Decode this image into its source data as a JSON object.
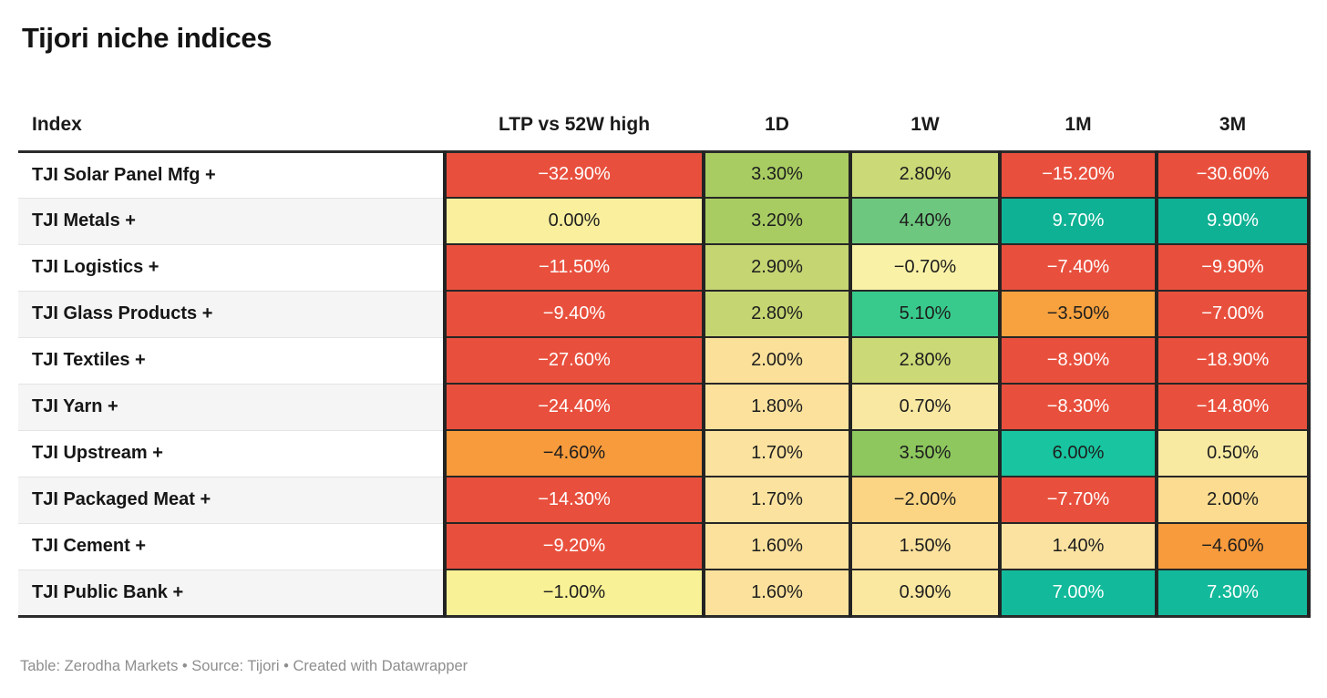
{
  "title": "Tijori niche indices",
  "footer": "Table: Zerodha Markets • Source: Tijori • Created with Datawrapper",
  "table": {
    "columns": [
      "Index",
      "LTP vs 52W high",
      "1D",
      "1W",
      "1M",
      "3M"
    ],
    "rows": [
      {
        "label": "TJI Solar Panel Mfg +",
        "cells": [
          {
            "v": "−32.90%",
            "bg": "#e8503d",
            "fg": "#ffffff"
          },
          {
            "v": "3.30%",
            "bg": "#a8cc62",
            "fg": "#1d1d1d"
          },
          {
            "v": "2.80%",
            "bg": "#ccd977",
            "fg": "#1d1d1d"
          },
          {
            "v": "−15.20%",
            "bg": "#e8503d",
            "fg": "#ffffff"
          },
          {
            "v": "−30.60%",
            "bg": "#e8503d",
            "fg": "#ffffff"
          }
        ]
      },
      {
        "label": "TJI Metals +",
        "cells": [
          {
            "v": "0.00%",
            "bg": "#f9ef9d",
            "fg": "#1d1d1d"
          },
          {
            "v": "3.20%",
            "bg": "#a8cc62",
            "fg": "#1d1d1d"
          },
          {
            "v": "4.40%",
            "bg": "#6ec77f",
            "fg": "#1d1d1d"
          },
          {
            "v": "9.70%",
            "bg": "#0fb194",
            "fg": "#ffffff"
          },
          {
            "v": "9.90%",
            "bg": "#0fb194",
            "fg": "#ffffff"
          }
        ]
      },
      {
        "label": "TJI Logistics +",
        "cells": [
          {
            "v": "−11.50%",
            "bg": "#e8503d",
            "fg": "#ffffff"
          },
          {
            "v": "2.90%",
            "bg": "#c4d572",
            "fg": "#1d1d1d"
          },
          {
            "v": "−0.70%",
            "bg": "#f9f2a6",
            "fg": "#1d1d1d"
          },
          {
            "v": "−7.40%",
            "bg": "#e8503d",
            "fg": "#ffffff"
          },
          {
            "v": "−9.90%",
            "bg": "#e8503d",
            "fg": "#ffffff"
          }
        ]
      },
      {
        "label": "TJI Glass Products +",
        "cells": [
          {
            "v": "−9.40%",
            "bg": "#e8503d",
            "fg": "#ffffff"
          },
          {
            "v": "2.80%",
            "bg": "#c4d572",
            "fg": "#1d1d1d"
          },
          {
            "v": "5.10%",
            "bg": "#38ca8c",
            "fg": "#1d1d1d"
          },
          {
            "v": "−3.50%",
            "bg": "#f7a23f",
            "fg": "#1d1d1d"
          },
          {
            "v": "−7.00%",
            "bg": "#e8503d",
            "fg": "#ffffff"
          }
        ]
      },
      {
        "label": "TJI Textiles +",
        "cells": [
          {
            "v": "−27.60%",
            "bg": "#e8503d",
            "fg": "#ffffff"
          },
          {
            "v": "2.00%",
            "bg": "#fbe099",
            "fg": "#1d1d1d"
          },
          {
            "v": "2.80%",
            "bg": "#ccd977",
            "fg": "#1d1d1d"
          },
          {
            "v": "−8.90%",
            "bg": "#e8503d",
            "fg": "#ffffff"
          },
          {
            "v": "−18.90%",
            "bg": "#e8503d",
            "fg": "#ffffff"
          }
        ]
      },
      {
        "label": "TJI Yarn +",
        "cells": [
          {
            "v": "−24.40%",
            "bg": "#e8503d",
            "fg": "#ffffff"
          },
          {
            "v": "1.80%",
            "bg": "#fbe19c",
            "fg": "#1d1d1d"
          },
          {
            "v": "0.70%",
            "bg": "#f9e8a2",
            "fg": "#1d1d1d"
          },
          {
            "v": "−8.30%",
            "bg": "#e8503d",
            "fg": "#ffffff"
          },
          {
            "v": "−14.80%",
            "bg": "#e8503d",
            "fg": "#ffffff"
          }
        ]
      },
      {
        "label": "TJI Upstream +",
        "cells": [
          {
            "v": "−4.60%",
            "bg": "#f89b3c",
            "fg": "#1d1d1d"
          },
          {
            "v": "1.70%",
            "bg": "#fbe29e",
            "fg": "#1d1d1d"
          },
          {
            "v": "3.50%",
            "bg": "#8dc75e",
            "fg": "#1d1d1d"
          },
          {
            "v": "6.00%",
            "bg": "#18c5a0",
            "fg": "#1d1d1d"
          },
          {
            "v": "0.50%",
            "bg": "#f9eaa2",
            "fg": "#1d1d1d"
          }
        ]
      },
      {
        "label": "TJI Packaged Meat +",
        "cells": [
          {
            "v": "−14.30%",
            "bg": "#e8503d",
            "fg": "#ffffff"
          },
          {
            "v": "1.70%",
            "bg": "#fbe29e",
            "fg": "#1d1d1d"
          },
          {
            "v": "−2.00%",
            "bg": "#fbd583",
            "fg": "#1d1d1d"
          },
          {
            "v": "−7.70%",
            "bg": "#e8503d",
            "fg": "#ffffff"
          },
          {
            "v": "2.00%",
            "bg": "#fbdc90",
            "fg": "#1d1d1d"
          }
        ]
      },
      {
        "label": "TJI Cement +",
        "cells": [
          {
            "v": "−9.20%",
            "bg": "#e8503d",
            "fg": "#ffffff"
          },
          {
            "v": "1.60%",
            "bg": "#fbe19c",
            "fg": "#1d1d1d"
          },
          {
            "v": "1.50%",
            "bg": "#fbe19c",
            "fg": "#1d1d1d"
          },
          {
            "v": "1.40%",
            "bg": "#fbe2a0",
            "fg": "#1d1d1d"
          },
          {
            "v": "−4.60%",
            "bg": "#f89b3c",
            "fg": "#1d1d1d"
          }
        ]
      },
      {
        "label": "TJI Public Bank +",
        "cells": [
          {
            "v": "−1.00%",
            "bg": "#f8f195",
            "fg": "#1d1d1d"
          },
          {
            "v": "1.60%",
            "bg": "#fbe19c",
            "fg": "#1d1d1d"
          },
          {
            "v": "0.90%",
            "bg": "#fae7a0",
            "fg": "#1d1d1d"
          },
          {
            "v": "7.00%",
            "bg": "#12ba9b",
            "fg": "#ffffff"
          },
          {
            "v": "7.30%",
            "bg": "#12ba9b",
            "fg": "#ffffff"
          }
        ]
      }
    ]
  },
  "colors": {
    "negative_strong": "#e8503d",
    "negative_mild": "#f89b3c",
    "neutral": "#f9ef9d",
    "positive_mild": "#a8cc62",
    "positive_strong": "#0fb194",
    "header_rule": "#2b2b2b",
    "footer_text": "#8e8e8e"
  },
  "chart_data": {
    "type": "table",
    "title": "Tijori niche indices",
    "columns": [
      "Index",
      "LTP vs 52W high",
      "1D",
      "1W",
      "1M",
      "3M"
    ],
    "units": "%",
    "color_coding": "diverging red-yellow-green heatmap by cell value",
    "rows": [
      [
        "TJI Solar Panel Mfg +",
        -32.9,
        3.3,
        2.8,
        -15.2,
        -30.6
      ],
      [
        "TJI Metals +",
        0.0,
        3.2,
        4.4,
        9.7,
        9.9
      ],
      [
        "TJI Logistics +",
        -11.5,
        2.9,
        -0.7,
        -7.4,
        -9.9
      ],
      [
        "TJI Glass Products +",
        -9.4,
        2.8,
        5.1,
        -3.5,
        -7.0
      ],
      [
        "TJI Textiles +",
        -27.6,
        2.0,
        2.8,
        -8.9,
        -18.9
      ],
      [
        "TJI Yarn +",
        -24.4,
        1.8,
        0.7,
        -8.3,
        -14.8
      ],
      [
        "TJI Upstream +",
        -4.6,
        1.7,
        3.5,
        6.0,
        0.5
      ],
      [
        "TJI Packaged Meat +",
        -14.3,
        1.7,
        -2.0,
        -7.7,
        2.0
      ],
      [
        "TJI Cement +",
        -9.2,
        1.6,
        1.5,
        1.4,
        -4.6
      ],
      [
        "TJI Public Bank +",
        -1.0,
        1.6,
        0.9,
        7.0,
        7.3
      ]
    ]
  }
}
